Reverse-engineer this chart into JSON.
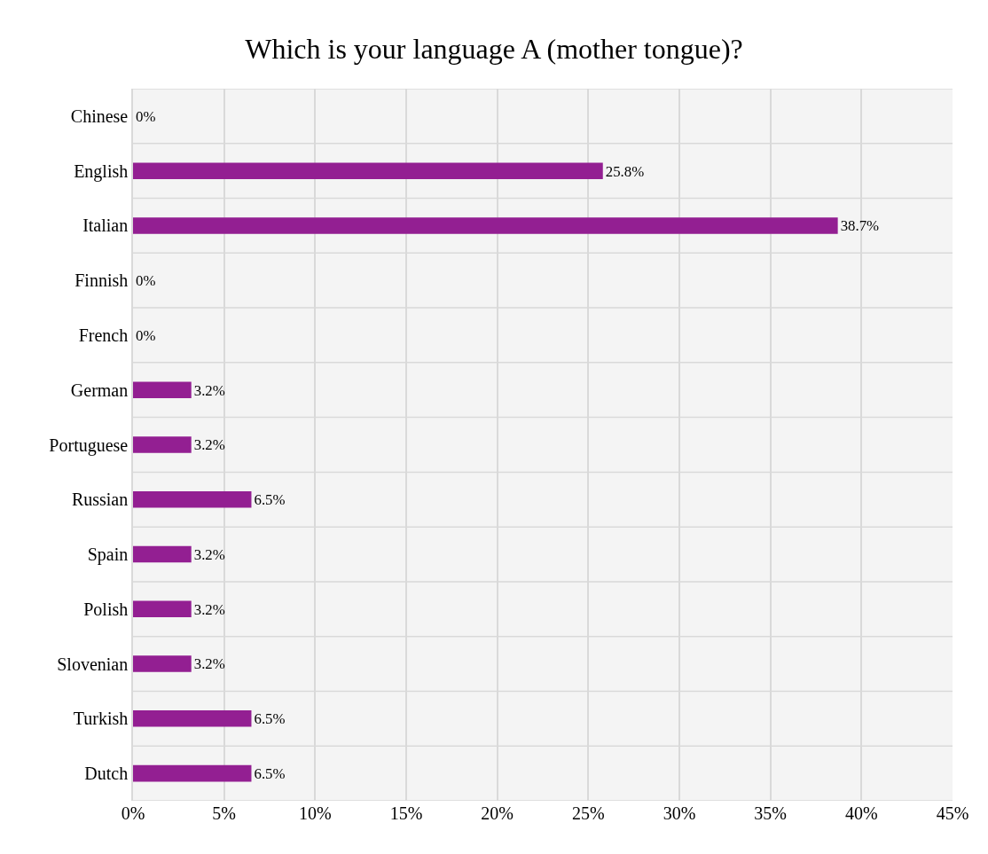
{
  "chart_data": {
    "type": "bar",
    "orientation": "horizontal",
    "title": "Which is your language A (mother tongue)?",
    "categories": [
      "Chinese",
      "English",
      "Italian",
      "Finnish",
      "French",
      "German",
      "Portuguese",
      "Russian",
      "Spain",
      "Polish",
      "Slovenian",
      "Turkish",
      "Dutch"
    ],
    "values": [
      0,
      25.8,
      38.7,
      0,
      0,
      3.2,
      3.2,
      6.5,
      3.2,
      3.2,
      3.2,
      6.5,
      6.5
    ],
    "value_labels": [
      "0%",
      "25.8%",
      "38.7%",
      "0%",
      "0%",
      "3.2%",
      "3.2%",
      "6.5%",
      "3.2%",
      "3.2%",
      "3.2%",
      "6.5%",
      "6.5%"
    ],
    "color": "#931f92",
    "xlim": [
      0,
      45
    ],
    "xticks": [
      {
        "value": 0,
        "label": "0%"
      },
      {
        "value": 5,
        "label": "5%"
      },
      {
        "value": 10,
        "label": "10%"
      },
      {
        "value": 15,
        "label": "15%"
      },
      {
        "value": 20,
        "label": "20%"
      },
      {
        "value": 25,
        "label": "25%"
      },
      {
        "value": 30,
        "label": "30%"
      },
      {
        "value": 35,
        "label": "35%"
      },
      {
        "value": 40,
        "label": "40%"
      },
      {
        "value": 45,
        "label": "45%"
      }
    ],
    "grid": true,
    "legend": false
  }
}
